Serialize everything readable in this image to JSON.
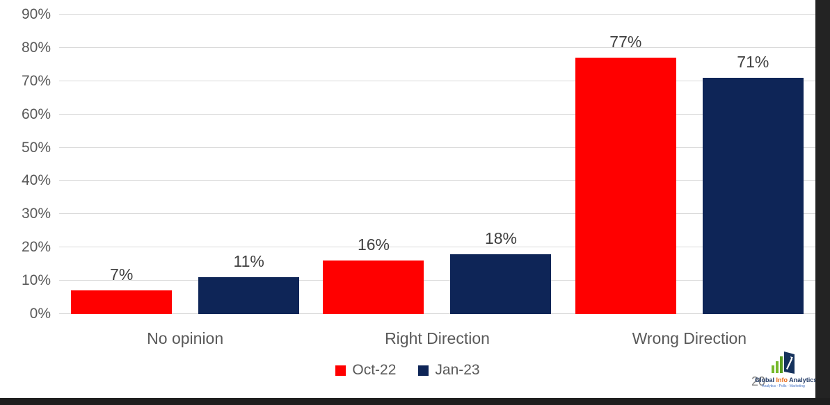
{
  "chart_data": {
    "type": "bar",
    "title": "",
    "xlabel": "",
    "ylabel": "",
    "categories": [
      "No opinion",
      "Right Direction",
      "Wrong Direction"
    ],
    "series": [
      {
        "name": "Oct-22",
        "color": "#ff0000",
        "values": [
          7,
          16,
          77
        ]
      },
      {
        "name": "Jan-23",
        "color": "#0e2557",
        "values": [
          11,
          18,
          71
        ]
      }
    ],
    "value_suffix": "%",
    "ylim": [
      0,
      90
    ],
    "ytick_step": 10,
    "ytick_labels": [
      "0%",
      "10%",
      "20%",
      "30%",
      "40%",
      "50%",
      "60%",
      "70%",
      "80%",
      "90%"
    ],
    "grid": true,
    "legend_position": "bottom"
  },
  "footer": {
    "page_number": "20",
    "logo": {
      "icon": "bar-chart-book-logo",
      "name_parts": [
        {
          "text": "Global",
          "color": "#1f3864"
        },
        {
          "text": "Info",
          "color": "#e8650d"
        },
        {
          "text": "Analytics",
          "color": "#1f3864"
        }
      ],
      "tagline": "Analytics - Polls - Marketing"
    }
  },
  "style": {
    "bar_red": "#ff0000",
    "bar_navy": "#0e2557",
    "grid_color": "#d9d9d9",
    "axis_label_color": "#595959",
    "data_label_color": "#404040",
    "frame_color": "#232323",
    "background": "#ffffff",
    "logo_green": "#76b82a",
    "logo_navy": "#16325c"
  }
}
